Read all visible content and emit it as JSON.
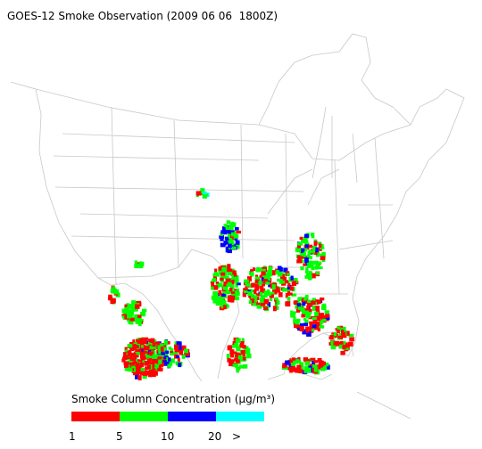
{
  "title": "GOES-12 Smoke Observation (2009 06 06  1800Z)",
  "legend": {
    "label": "Smoke Column Concentration (µg/m³)",
    "colors": [
      "#ff0000",
      "#00ff00",
      "#0000ff",
      "#00ffff"
    ],
    "ticks": [
      "1",
      "5",
      "10",
      "20",
      ">"
    ]
  }
}
